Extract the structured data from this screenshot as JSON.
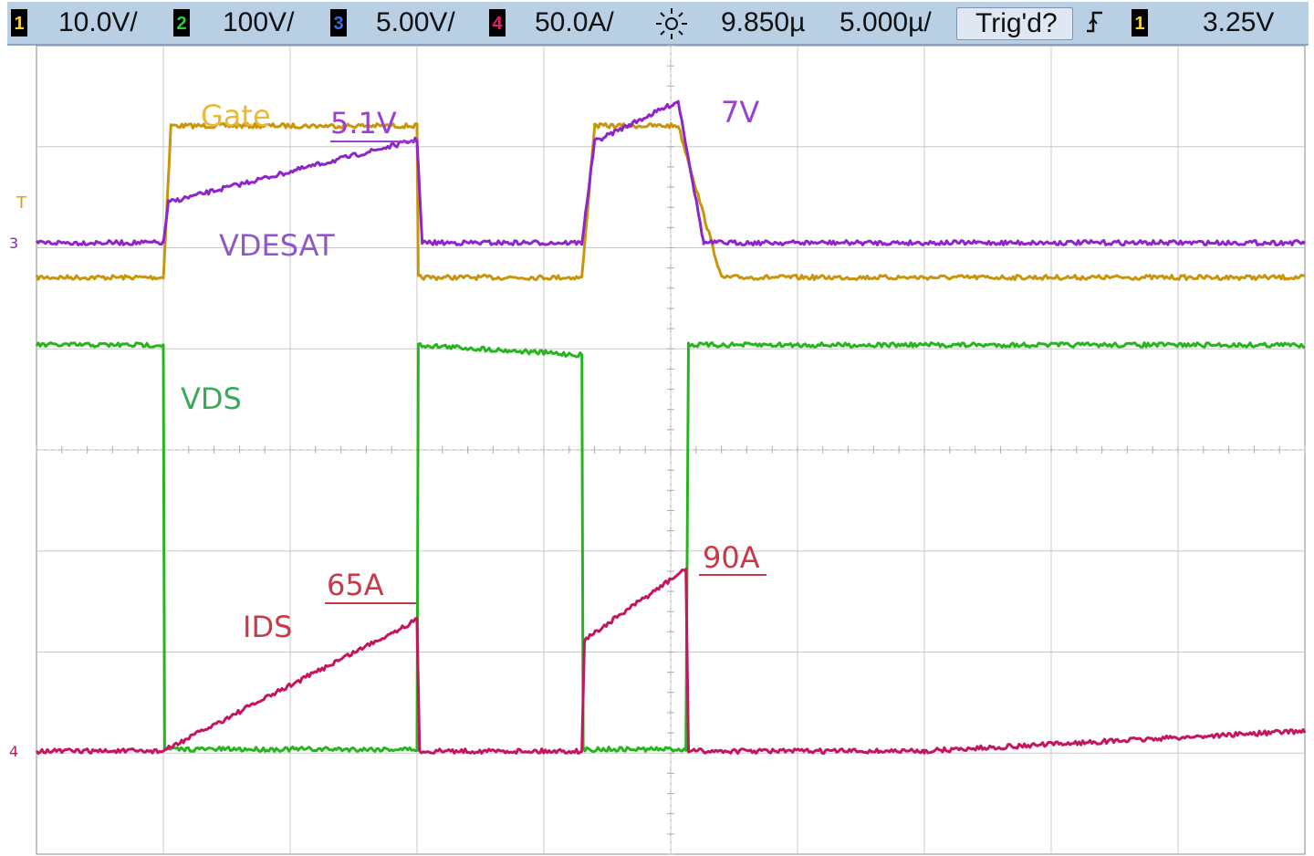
{
  "status_bar": {
    "ch1": {
      "num": "1",
      "scale": "10.0V/",
      "color": "#f2d33a"
    },
    "ch2": {
      "num": "2",
      "scale": "100V/",
      "color": "#2fd12f"
    },
    "ch3": {
      "num": "3",
      "scale": "5.00V/",
      "color": "#3a6fe0"
    },
    "ch4": {
      "num": "4",
      "scale": "50.0A/",
      "color": "#e0206e"
    },
    "acq_icon": "sun-icon",
    "time_position": "9.850µ",
    "time_scale": "5.000µ/",
    "trigger_status": "Trig'd?",
    "trigger_edge_icon": "rising-edge-icon",
    "trigger_source": "1",
    "trigger_level": "3.25V"
  },
  "annotations": {
    "gate": "Gate",
    "v51": "5.1V",
    "v7": "7V",
    "vdesat": "VDESAT",
    "vds": "VDS",
    "ids": "IDS",
    "a65": "65A",
    "a90": "90A"
  },
  "markers": {
    "trigger_t": "T",
    "ch3": "3",
    "ch4": "4"
  },
  "chart_data": {
    "type": "line",
    "title": "",
    "xlabel": "",
    "ylabel": "",
    "x_unit": "µs",
    "x_range": [
      0,
      50
    ],
    "divisions": {
      "x": 10,
      "y": 8
    },
    "grid": true,
    "colors": {
      "gate": "#c8960c",
      "vdesat": "#8e24c9",
      "vds": "#27b51f",
      "ids": "#c4155f"
    },
    "series": [
      {
        "name": "Gate",
        "unit": "V",
        "points": [
          [
            0,
            0
          ],
          [
            5,
            0
          ],
          [
            5.3,
            15
          ],
          [
            15,
            15
          ],
          [
            15.05,
            0
          ],
          [
            21.5,
            0
          ],
          [
            22,
            15
          ],
          [
            25.3,
            15
          ],
          [
            27,
            0
          ],
          [
            50,
            0
          ]
        ]
      },
      {
        "name": "VDESAT",
        "unit": "V",
        "points": [
          [
            0,
            0
          ],
          [
            5,
            0
          ],
          [
            5.2,
            2
          ],
          [
            15,
            5.1
          ],
          [
            15.2,
            0
          ],
          [
            21.5,
            0
          ],
          [
            22,
            5
          ],
          [
            25.3,
            7
          ],
          [
            26.3,
            0
          ],
          [
            50,
            0
          ]
        ]
      },
      {
        "name": "VDS",
        "unit": "V",
        "points": [
          [
            0,
            400
          ],
          [
            5,
            400
          ],
          [
            5.05,
            0
          ],
          [
            15,
            0
          ],
          [
            15.05,
            400
          ],
          [
            21.5,
            390
          ],
          [
            21.55,
            0
          ],
          [
            25.6,
            0
          ],
          [
            25.7,
            400
          ],
          [
            50,
            400
          ]
        ]
      },
      {
        "name": "IDS",
        "unit": "A",
        "points": [
          [
            0,
            0
          ],
          [
            5,
            0
          ],
          [
            15,
            65
          ],
          [
            15.1,
            0
          ],
          [
            21.5,
            0
          ],
          [
            21.6,
            55
          ],
          [
            25.6,
            90
          ],
          [
            25.7,
            0
          ],
          [
            35,
            0
          ],
          [
            50,
            10
          ]
        ]
      }
    ],
    "labels": [
      {
        "text": "5.1V",
        "x": 15,
        "y": 5.1
      },
      {
        "text": "7V",
        "x": 25.3,
        "y": 7
      },
      {
        "text": "65A",
        "x": 15,
        "y": 65
      },
      {
        "text": "90A",
        "x": 25.6,
        "y": 90
      }
    ]
  }
}
